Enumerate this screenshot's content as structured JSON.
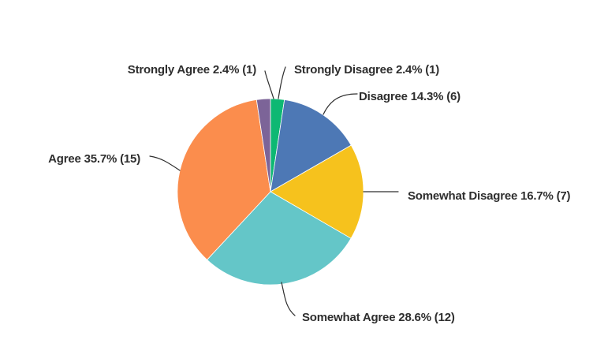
{
  "chart_data": {
    "type": "pie",
    "title": "",
    "direction": "clockwise",
    "start_angle_deg": 0,
    "legend_position": "none",
    "background": "#FFFFFF",
    "label_color": "#2E2E2E",
    "leader_line_color": "#2E2E2E",
    "slices": [
      {
        "label": "Strongly Disagree",
        "percent": 2.4,
        "count": 1,
        "color": "#0DB873",
        "display": "Strongly Disagree 2.4% (1)"
      },
      {
        "label": "Disagree",
        "percent": 14.3,
        "count": 6,
        "color": "#4D78B5",
        "display": "Disagree 14.3% (6)"
      },
      {
        "label": "Somewhat Disagree",
        "percent": 16.7,
        "count": 7,
        "color": "#F6C21D",
        "display": "Somewhat Disagree 16.7% (7)"
      },
      {
        "label": "Somewhat Agree",
        "percent": 28.6,
        "count": 12,
        "color": "#64C6C8",
        "display": "Somewhat Agree 28.6% (12)"
      },
      {
        "label": "Agree",
        "percent": 35.7,
        "count": 15,
        "color": "#FB8D4D",
        "display": "Agree 35.7% (15)"
      },
      {
        "label": "Strongly Agree",
        "percent": 2.4,
        "count": 1,
        "color": "#7C6498",
        "display": "Strongly Agree 2.4% (1)"
      }
    ]
  }
}
